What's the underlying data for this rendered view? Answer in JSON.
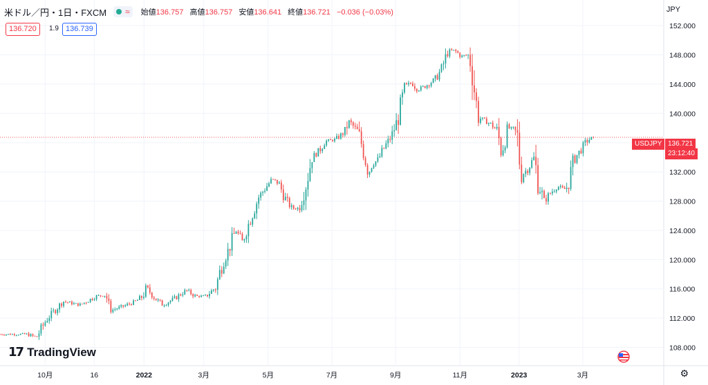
{
  "header": {
    "symbol": "米ドル／円・1日・FXCM",
    "wave_icon": "≈",
    "open_label": "始値",
    "open_value": "136.757",
    "high_label": "高値",
    "high_value": "136.757",
    "low_label": "安値",
    "low_value": "136.641",
    "close_label": "終値",
    "close_value": "136.721",
    "change": "−0.036 (−0.03%)"
  },
  "quote": {
    "bid": "136.720",
    "spread": "1.9",
    "ask": "136.739"
  },
  "currency": "JPY",
  "price_tag": {
    "symbol": "USDJPY",
    "price": "136.721",
    "countdown": "23:12:40"
  },
  "branding": {
    "logo_text": "TradingView"
  },
  "colors": {
    "up": "#26a69a",
    "down": "#ef5350",
    "accent": "#f23645",
    "grid": "#f0f3fa"
  },
  "icons": {
    "settings": "gear-icon",
    "flag": "us-flag-icon",
    "status": "market-open-dot-icon"
  },
  "chart_data": {
    "type": "candlestick",
    "symbol": "USDJPY",
    "interval": "1D",
    "ylim": [
      105.5,
      155.5
    ],
    "y_ticks": [
      "152.000",
      "148.000",
      "144.000",
      "140.000",
      "136.000",
      "132.000",
      "128.000",
      "124.000",
      "120.000",
      "116.000",
      "112.000",
      "108.000"
    ],
    "y_tick_values": [
      152,
      148,
      144,
      140,
      136,
      132,
      128,
      124,
      120,
      116,
      112,
      108
    ],
    "x_ticks": [
      "10月",
      "16",
      "2022",
      "3月",
      "5月",
      "7月",
      "9月",
      "11月",
      "2023",
      "3月"
    ],
    "x_tick_values": [
      0.068,
      0.142,
      0.217,
      0.307,
      0.404,
      0.5,
      0.596,
      0.693,
      0.782,
      0.878
    ],
    "x_range": [
      "2021-08-31",
      "2023-03-10"
    ],
    "last_price": 136.721,
    "path": [
      [
        0.0,
        109.8
      ],
      [
        0.04,
        109.8
      ],
      [
        0.055,
        109.4
      ],
      [
        0.07,
        111.8
      ],
      [
        0.095,
        114.3
      ],
      [
        0.12,
        113.8
      ],
      [
        0.145,
        115.0
      ],
      [
        0.16,
        115.2
      ],
      [
        0.165,
        113.0
      ],
      [
        0.185,
        113.6
      ],
      [
        0.205,
        114.3
      ],
      [
        0.215,
        115.0
      ],
      [
        0.22,
        116.2
      ],
      [
        0.235,
        114.6
      ],
      [
        0.245,
        113.8
      ],
      [
        0.265,
        114.8
      ],
      [
        0.28,
        115.8
      ],
      [
        0.295,
        115.0
      ],
      [
        0.31,
        115.0
      ],
      [
        0.325,
        116.2
      ],
      [
        0.335,
        119.5
      ],
      [
        0.345,
        121.5
      ],
      [
        0.355,
        124.0
      ],
      [
        0.365,
        122.5
      ],
      [
        0.375,
        125.0
      ],
      [
        0.39,
        128.6
      ],
      [
        0.4,
        129.8
      ],
      [
        0.41,
        131.0
      ],
      [
        0.42,
        130.4
      ],
      [
        0.43,
        128.3
      ],
      [
        0.44,
        127.0
      ],
      [
        0.45,
        127.0
      ],
      [
        0.46,
        129.9
      ],
      [
        0.47,
        134.0
      ],
      [
        0.48,
        134.8
      ],
      [
        0.49,
        136.2
      ],
      [
        0.505,
        136.4
      ],
      [
        0.52,
        137.5
      ],
      [
        0.525,
        139.0
      ],
      [
        0.54,
        137.4
      ],
      [
        0.55,
        134.0
      ],
      [
        0.555,
        131.7
      ],
      [
        0.56,
        133.0
      ],
      [
        0.57,
        133.7
      ],
      [
        0.58,
        135.5
      ],
      [
        0.59,
        136.9
      ],
      [
        0.6,
        139.4
      ],
      [
        0.61,
        143.5
      ],
      [
        0.62,
        144.2
      ],
      [
        0.63,
        143.2
      ],
      [
        0.64,
        143.7
      ],
      [
        0.655,
        144.6
      ],
      [
        0.665,
        146.0
      ],
      [
        0.675,
        148.5
      ],
      [
        0.685,
        148.6
      ],
      [
        0.695,
        147.8
      ],
      [
        0.705,
        148.0
      ],
      [
        0.71,
        146.6
      ],
      [
        0.72,
        139.5
      ],
      [
        0.73,
        139.0
      ],
      [
        0.74,
        138.5
      ],
      [
        0.75,
        137.5
      ],
      [
        0.755,
        134.5
      ],
      [
        0.765,
        138.0
      ],
      [
        0.775,
        137.8
      ],
      [
        0.78,
        136.5
      ],
      [
        0.785,
        131.5
      ],
      [
        0.795,
        132.4
      ],
      [
        0.805,
        134.0
      ],
      [
        0.81,
        130.7
      ],
      [
        0.82,
        128.0
      ],
      [
        0.83,
        129.2
      ],
      [
        0.84,
        130.0
      ],
      [
        0.85,
        129.6
      ],
      [
        0.855,
        130.0
      ],
      [
        0.865,
        133.8
      ],
      [
        0.875,
        135.0
      ],
      [
        0.885,
        136.3
      ],
      [
        0.894,
        136.72
      ]
    ]
  }
}
